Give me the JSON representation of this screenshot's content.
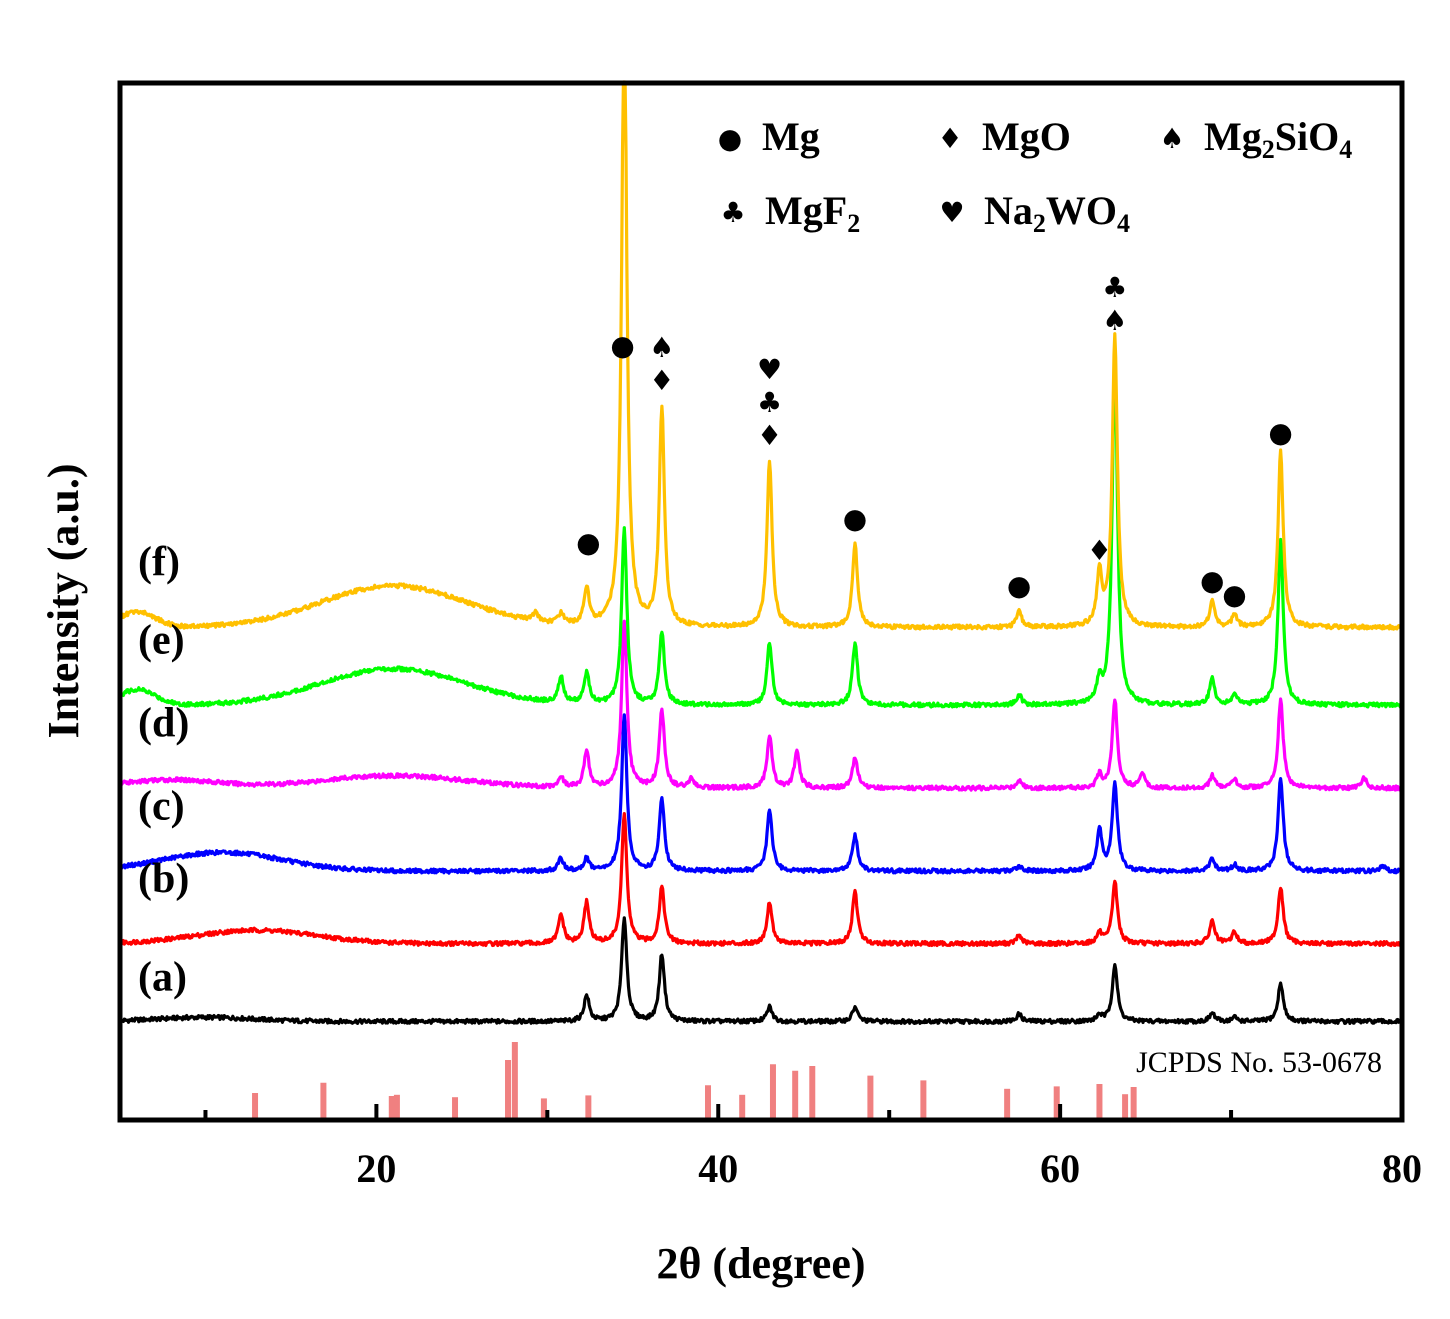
{
  "chart_data": {
    "type": "line",
    "title": "",
    "xlabel": "2θ (degree)",
    "ylabel": "Intensity (a.u.)",
    "xlim": [
      5,
      80
    ],
    "ylim": [
      0,
      1
    ],
    "xticks": [
      20,
      40,
      60,
      80
    ],
    "xtick_labels": [
      "20",
      "40",
      "60",
      "80"
    ],
    "minor_ticks": [
      10,
      30,
      50,
      70
    ],
    "grid": false,
    "reference": {
      "label": "JCPDS No. 53-0678",
      "color": "#f08080",
      "peaks": [
        {
          "x": 12.9,
          "h": 0.45
        },
        {
          "x": 16.9,
          "h": 0.62
        },
        {
          "x": 20.9,
          "h": 0.4
        },
        {
          "x": 21.2,
          "h": 0.42
        },
        {
          "x": 24.6,
          "h": 0.38
        },
        {
          "x": 27.7,
          "h": 1.0
        },
        {
          "x": 28.1,
          "h": 1.3
        },
        {
          "x": 29.8,
          "h": 0.36
        },
        {
          "x": 32.4,
          "h": 0.41
        },
        {
          "x": 39.4,
          "h": 0.58
        },
        {
          "x": 41.4,
          "h": 0.42
        },
        {
          "x": 43.2,
          "h": 0.93
        },
        {
          "x": 44.5,
          "h": 0.82
        },
        {
          "x": 45.5,
          "h": 0.9
        },
        {
          "x": 48.9,
          "h": 0.74
        },
        {
          "x": 52.0,
          "h": 0.66
        },
        {
          "x": 56.9,
          "h": 0.52
        },
        {
          "x": 59.8,
          "h": 0.56
        },
        {
          "x": 62.3,
          "h": 0.6
        },
        {
          "x": 63.8,
          "h": 0.43
        },
        {
          "x": 64.3,
          "h": 0.55
        }
      ]
    },
    "legend": [
      {
        "symbol": "●",
        "label": "Mg"
      },
      {
        "symbol": "♦",
        "label": "MgO"
      },
      {
        "symbol": "♠",
        "label": "Mg",
        "sub1": "2",
        "mid": "SiO",
        "sub2": "4"
      },
      {
        "symbol": "♣",
        "label": "MgF",
        "sub1": "2"
      },
      {
        "symbol": "♥",
        "label": "Na",
        "sub1": "2",
        "mid": "WO",
        "sub2": "4"
      }
    ],
    "annotations": [
      {
        "x": 34.4,
        "symbols": [
          "●"
        ]
      },
      {
        "x": 36.7,
        "symbols": [
          "♠",
          "♦"
        ]
      },
      {
        "x": 43.0,
        "symbols": [
          "♥",
          "♣",
          "♦"
        ]
      },
      {
        "x": 63.2,
        "symbols": [
          "♣",
          "♠"
        ]
      },
      {
        "x": 72.9,
        "symbols": [
          "●"
        ]
      },
      {
        "x": 32.4,
        "symbols": [
          "●"
        ]
      },
      {
        "x": 48.0,
        "symbols": [
          "●"
        ]
      },
      {
        "x": 57.6,
        "symbols": [
          "●"
        ]
      },
      {
        "x": 62.3,
        "symbols": [
          "♦"
        ]
      },
      {
        "x": 68.9,
        "symbols": [
          "●"
        ]
      },
      {
        "x": 70.2,
        "symbols": [
          "●"
        ]
      }
    ],
    "series": [
      {
        "name": "(a)",
        "color": "#000000",
        "baseline": 0.095,
        "amp": 1.0,
        "hump": [
          {
            "c": 10,
            "w": 4,
            "a": 0.004
          }
        ],
        "peaks": [
          [
            32.3,
            0.025
          ],
          [
            34.5,
            0.1
          ],
          [
            36.7,
            0.065
          ],
          [
            43.0,
            0.014
          ],
          [
            48.0,
            0.014
          ],
          [
            57.6,
            0.007
          ],
          [
            62.3,
            0.006
          ],
          [
            63.2,
            0.055
          ],
          [
            68.9,
            0.008
          ],
          [
            70.2,
            0.004
          ],
          [
            72.9,
            0.037
          ]
        ]
      },
      {
        "name": "(b)",
        "color": "#ff0000",
        "baseline": 0.17,
        "amp": 1.0,
        "hump": [
          {
            "c": 13,
            "w": 5,
            "a": 0.013
          }
        ],
        "peaks": [
          [
            30.8,
            0.028
          ],
          [
            32.3,
            0.04
          ],
          [
            34.5,
            0.125
          ],
          [
            36.7,
            0.055
          ],
          [
            43.0,
            0.04
          ],
          [
            48.0,
            0.05
          ],
          [
            57.6,
            0.008
          ],
          [
            62.3,
            0.01
          ],
          [
            63.2,
            0.06
          ],
          [
            68.9,
            0.022
          ],
          [
            70.2,
            0.011
          ],
          [
            72.9,
            0.055
          ]
        ]
      },
      {
        "name": "(c)",
        "color": "#0000ff",
        "baseline": 0.24,
        "amp": 1.0,
        "hump": [
          {
            "c": 11,
            "w": 5,
            "a": 0.018
          }
        ],
        "peaks": [
          [
            30.8,
            0.012
          ],
          [
            32.3,
            0.012
          ],
          [
            34.5,
            0.15
          ],
          [
            36.7,
            0.07
          ],
          [
            43.0,
            0.06
          ],
          [
            48.0,
            0.035
          ],
          [
            57.6,
            0.005
          ],
          [
            62.3,
            0.04
          ],
          [
            63.2,
            0.085
          ],
          [
            68.9,
            0.012
          ],
          [
            70.2,
            0.006
          ],
          [
            72.9,
            0.09
          ],
          [
            78.9,
            0.005
          ]
        ]
      },
      {
        "name": "(d)",
        "color": "#ff00ff",
        "baseline": 0.32,
        "amp": 1.0,
        "hump": [
          {
            "c": 21,
            "w": 6,
            "a": 0.012
          },
          {
            "c": 8,
            "w": 4,
            "a": 0.008
          }
        ],
        "peaks": [
          [
            30.8,
            0.01
          ],
          [
            32.3,
            0.035
          ],
          [
            34.5,
            0.16
          ],
          [
            36.7,
            0.075
          ],
          [
            38.4,
            0.008
          ],
          [
            43.0,
            0.05
          ],
          [
            44.6,
            0.035
          ],
          [
            48.0,
            0.03
          ],
          [
            57.6,
            0.008
          ],
          [
            62.3,
            0.012
          ],
          [
            63.2,
            0.085
          ],
          [
            64.8,
            0.015
          ],
          [
            68.9,
            0.012
          ],
          [
            70.2,
            0.008
          ],
          [
            72.9,
            0.085
          ],
          [
            77.8,
            0.01
          ]
        ]
      },
      {
        "name": "(e)",
        "color": "#00ff00",
        "baseline": 0.4,
        "amp": 1.0,
        "hump": [
          {
            "c": 21,
            "w": 6,
            "a": 0.035
          },
          {
            "c": 6,
            "w": 1.5,
            "a": 0.015
          }
        ],
        "peaks": [
          [
            30.8,
            0.025
          ],
          [
            32.3,
            0.03
          ],
          [
            34.5,
            0.17
          ],
          [
            36.7,
            0.07
          ],
          [
            43.0,
            0.06
          ],
          [
            48.0,
            0.06
          ],
          [
            57.6,
            0.01
          ],
          [
            62.3,
            0.02
          ],
          [
            63.2,
            0.34
          ],
          [
            68.9,
            0.025
          ],
          [
            70.2,
            0.01
          ],
          [
            72.9,
            0.16
          ]
        ]
      },
      {
        "name": "(f)",
        "color": "#ffc000",
        "baseline": 0.475,
        "amp": 1.0,
        "hump": [
          {
            "c": 21,
            "w": 6,
            "a": 0.04
          },
          {
            "c": 6,
            "w": 1.5,
            "a": 0.015
          }
        ],
        "peaks": [
          [
            29.3,
            0.008
          ],
          [
            30.8,
            0.01
          ],
          [
            32.3,
            0.035
          ],
          [
            34.5,
            0.6
          ],
          [
            36.7,
            0.21
          ],
          [
            43.0,
            0.16
          ],
          [
            48.0,
            0.08
          ],
          [
            57.6,
            0.015
          ],
          [
            62.3,
            0.05
          ],
          [
            63.2,
            0.28
          ],
          [
            68.9,
            0.025
          ],
          [
            70.2,
            0.012
          ],
          [
            72.9,
            0.17
          ]
        ]
      }
    ]
  }
}
